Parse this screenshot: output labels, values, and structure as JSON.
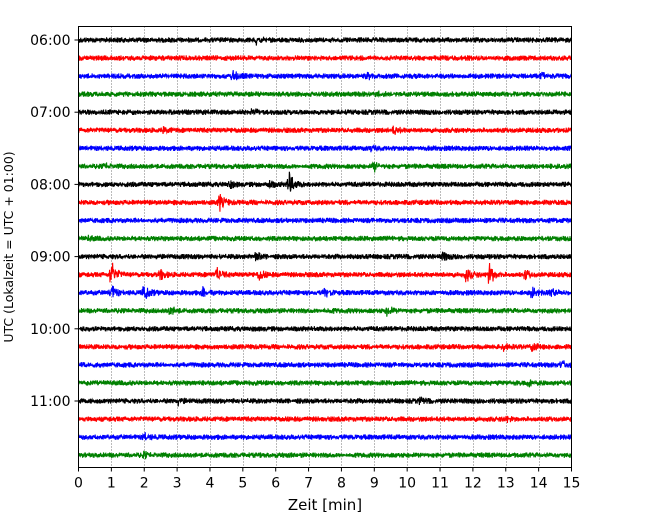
{
  "chart_data": {
    "type": "line",
    "title": "",
    "xlabel": "Zeit  [min]",
    "ylabel": "UTC (Lokalzeit = UTC + 01:00)",
    "xlim": [
      0,
      15
    ],
    "x_ticks": [
      0,
      1,
      2,
      3,
      4,
      5,
      6,
      7,
      8,
      9,
      10,
      11,
      12,
      13,
      14,
      15
    ],
    "y_tick_labels": [
      "06:00",
      "07:00",
      "08:00",
      "09:00",
      "10:00",
      "11:00"
    ],
    "grid": "vertical dotted lines at each minute",
    "trace_interval_min": 15,
    "series_colors": [
      "#000000",
      "#ff0000",
      "#0000ff",
      "#008000"
    ],
    "series": [
      {
        "start": "06:00",
        "color": "#000000",
        "events": [
          {
            "t": 5.4,
            "amp": 0.5
          }
        ]
      },
      {
        "start": "06:15",
        "color": "#ff0000",
        "events": []
      },
      {
        "start": "06:30",
        "color": "#0000ff",
        "events": [
          {
            "t": 4.7,
            "amp": 0.6
          },
          {
            "t": 8.8,
            "amp": 0.3
          },
          {
            "t": 14.1,
            "amp": 0.3
          }
        ]
      },
      {
        "start": "06:45",
        "color": "#008000",
        "events": [
          {
            "t": 9.1,
            "amp": 0.3
          }
        ]
      },
      {
        "start": "07:00",
        "color": "#000000",
        "events": [
          {
            "t": 5.3,
            "amp": 0.3
          }
        ]
      },
      {
        "start": "07:15",
        "color": "#ff0000",
        "events": [
          {
            "t": 2.6,
            "amp": 0.3
          },
          {
            "t": 9.6,
            "amp": 0.4
          }
        ]
      },
      {
        "start": "07:30",
        "color": "#0000ff",
        "events": [
          {
            "t": 8.9,
            "amp": 0.2
          }
        ]
      },
      {
        "start": "07:45",
        "color": "#008000",
        "events": [
          {
            "t": 0.8,
            "amp": 0.3
          },
          {
            "t": 9.0,
            "amp": 0.6
          }
        ]
      },
      {
        "start": "08:00",
        "color": "#000000",
        "events": [
          {
            "t": 4.6,
            "amp": 0.4
          },
          {
            "t": 5.8,
            "amp": 0.4
          },
          {
            "t": 6.4,
            "amp": 1.6
          }
        ]
      },
      {
        "start": "08:15",
        "color": "#ff0000",
        "events": [
          {
            "t": 4.3,
            "amp": 1.0
          }
        ]
      },
      {
        "start": "08:30",
        "color": "#0000ff",
        "events": []
      },
      {
        "start": "08:45",
        "color": "#008000",
        "events": [
          {
            "t": 0.3,
            "amp": 0.2
          }
        ]
      },
      {
        "start": "09:00",
        "color": "#000000",
        "events": [
          {
            "t": 5.4,
            "amp": 0.5
          },
          {
            "t": 11.1,
            "amp": 0.4
          }
        ]
      },
      {
        "start": "09:15",
        "color": "#ff0000",
        "events": [
          {
            "t": 1.0,
            "amp": 1.7
          },
          {
            "t": 2.5,
            "amp": 0.6
          },
          {
            "t": 4.2,
            "amp": 0.9
          },
          {
            "t": 5.5,
            "amp": 0.6
          },
          {
            "t": 11.8,
            "amp": 0.8
          },
          {
            "t": 12.5,
            "amp": 1.5
          },
          {
            "t": 13.6,
            "amp": 0.5
          }
        ]
      },
      {
        "start": "09:30",
        "color": "#0000ff",
        "events": [
          {
            "t": 1.0,
            "amp": 0.9
          },
          {
            "t": 2.0,
            "amp": 0.9
          },
          {
            "t": 3.8,
            "amp": 0.6
          },
          {
            "t": 7.5,
            "amp": 0.5
          },
          {
            "t": 13.8,
            "amp": 0.6
          },
          {
            "t": 14.4,
            "amp": 0.4
          }
        ]
      },
      {
        "start": "09:45",
        "color": "#008000",
        "events": [
          {
            "t": 2.8,
            "amp": 0.5
          },
          {
            "t": 7.5,
            "amp": 0.4
          },
          {
            "t": 9.4,
            "amp": 0.6
          }
        ]
      },
      {
        "start": "10:00",
        "color": "#000000",
        "events": []
      },
      {
        "start": "10:15",
        "color": "#ff0000",
        "events": [
          {
            "t": 12.9,
            "amp": 0.4
          },
          {
            "t": 13.8,
            "amp": 0.5
          }
        ]
      },
      {
        "start": "10:30",
        "color": "#0000ff",
        "events": [
          {
            "t": 14.7,
            "amp": 0.5
          }
        ]
      },
      {
        "start": "10:45",
        "color": "#008000",
        "events": [
          {
            "t": 13.7,
            "amp": 0.3
          }
        ]
      },
      {
        "start": "11:00",
        "color": "#000000",
        "events": [
          {
            "t": 3.0,
            "amp": 0.5
          },
          {
            "t": 10.4,
            "amp": 0.3
          }
        ]
      },
      {
        "start": "11:15",
        "color": "#ff0000",
        "events": [
          {
            "t": 13.0,
            "amp": 0.3
          }
        ]
      },
      {
        "start": "11:30",
        "color": "#0000ff",
        "events": [
          {
            "t": 2.0,
            "amp": 0.4
          }
        ]
      },
      {
        "start": "11:45",
        "color": "#008000",
        "events": [
          {
            "t": 2.0,
            "amp": 0.3
          }
        ]
      }
    ]
  }
}
